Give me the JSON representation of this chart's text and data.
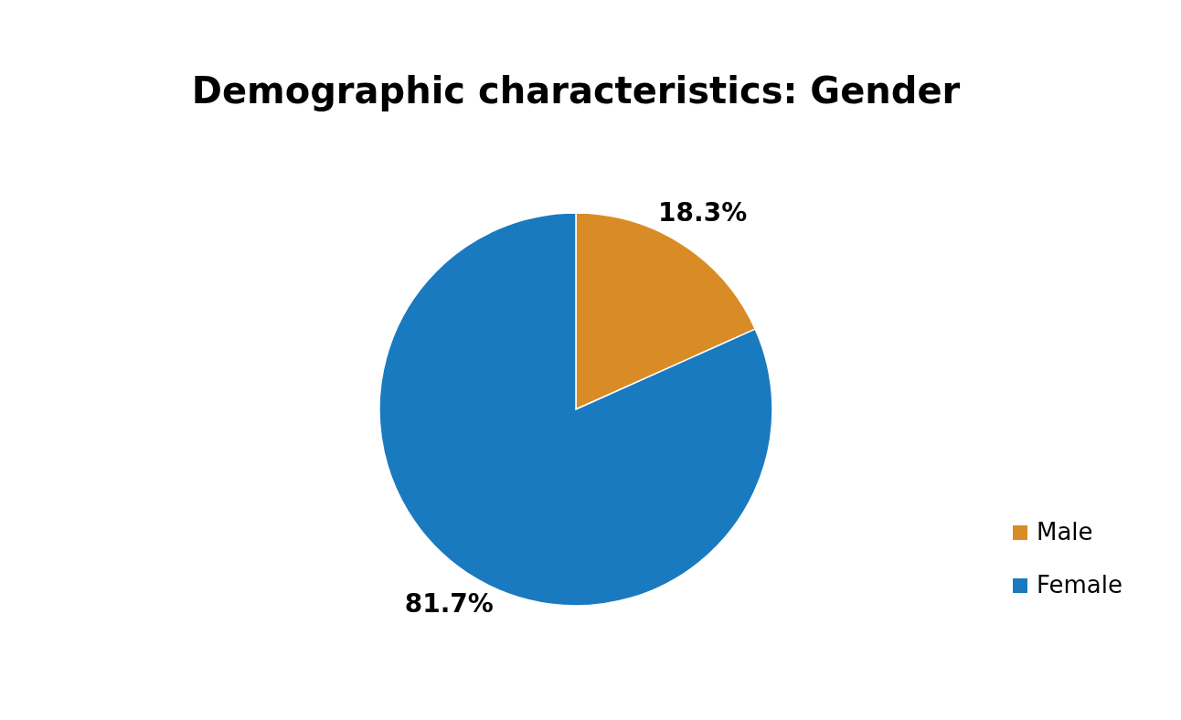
{
  "chart_data": {
    "type": "pie",
    "title": "Demographic characteristics: Gender",
    "categories": [
      "Male",
      "Female"
    ],
    "values": [
      18.3,
      81.7
    ],
    "colors": [
      "#d98c26",
      "#1a7abf"
    ],
    "value_labels": [
      "18.3%",
      "81.7%"
    ],
    "legend": "right"
  }
}
